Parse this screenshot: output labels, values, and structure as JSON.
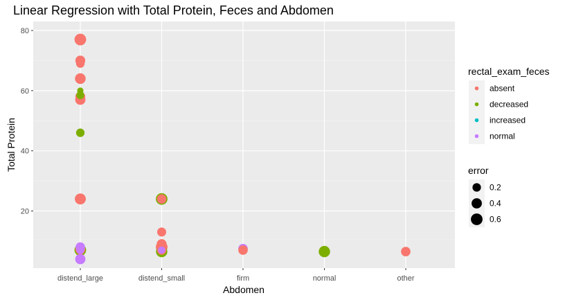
{
  "chart_data": {
    "type": "scatter",
    "title": "Linear Regression with Total Protein, Feces and Abdomen",
    "xlabel": "Abdomen",
    "ylabel": "Total Protein",
    "categories": [
      "distend_large",
      "distend_small",
      "firm",
      "normal",
      "other"
    ],
    "ylim": [
      1,
      83
    ],
    "yticks": [
      20,
      40,
      60,
      80
    ],
    "grid": true,
    "legend_position": "right",
    "color_legend": {
      "title": "rectal_exam_feces",
      "entries": [
        {
          "label": "absent",
          "color": "#F8766D"
        },
        {
          "label": "decreased",
          "color": "#7CAE00"
        },
        {
          "label": "increased",
          "color": "#00BFC4"
        },
        {
          "label": "normal",
          "color": "#C77CFF"
        }
      ]
    },
    "size_legend": {
      "title": "error",
      "entries": [
        {
          "label": "0.2",
          "value": 0.2
        },
        {
          "label": "0.4",
          "value": 0.4
        },
        {
          "label": "0.6",
          "value": 0.6
        }
      ]
    },
    "points": [
      {
        "x": "distend_large",
        "y": 77,
        "group": "absent",
        "error": 0.6
      },
      {
        "x": "distend_large",
        "y": 70,
        "group": "absent",
        "error": 0.35
      },
      {
        "x": "distend_large",
        "y": 69,
        "group": "absent",
        "error": 0.2
      },
      {
        "x": "distend_large",
        "y": 64,
        "group": "absent",
        "error": 0.45
      },
      {
        "x": "distend_large",
        "y": 60,
        "group": "decreased",
        "error": 0.05
      },
      {
        "x": "distend_large",
        "y": 58,
        "group": "absent",
        "error": 0.35
      },
      {
        "x": "distend_large",
        "y": 58.5,
        "group": "decreased",
        "error": 0.15
      },
      {
        "x": "distend_large",
        "y": 57,
        "group": "absent",
        "error": 0.4
      },
      {
        "x": "distend_large",
        "y": 46,
        "group": "decreased",
        "error": 0.2
      },
      {
        "x": "distend_large",
        "y": 24,
        "group": "absent",
        "error": 0.5
      },
      {
        "x": "distend_large",
        "y": 8,
        "group": "normal",
        "error": 0.3
      },
      {
        "x": "distend_large",
        "y": 7,
        "group": "decreased",
        "error": 0.6
      },
      {
        "x": "distend_large",
        "y": 7.2,
        "group": "absent",
        "error": 0.35
      },
      {
        "x": "distend_large",
        "y": 7,
        "group": "normal",
        "error": 0.15
      },
      {
        "x": "distend_large",
        "y": 4,
        "group": "normal",
        "error": 0.4
      },
      {
        "x": "distend_small",
        "y": 24,
        "group": "decreased",
        "error": 0.6
      },
      {
        "x": "distend_small",
        "y": 24,
        "group": "absent",
        "error": 0.3
      },
      {
        "x": "distend_small",
        "y": 13,
        "group": "absent",
        "error": 0.25
      },
      {
        "x": "distend_small",
        "y": 9,
        "group": "absent",
        "error": 0.35
      },
      {
        "x": "distend_small",
        "y": 8,
        "group": "absent",
        "error": 0.6
      },
      {
        "x": "distend_small",
        "y": 7,
        "group": "normal",
        "error": 0.1
      },
      {
        "x": "distend_small",
        "y": 6.5,
        "group": "decreased",
        "error": 0.55
      },
      {
        "x": "distend_small",
        "y": 7,
        "group": "absent",
        "error": 0.3
      },
      {
        "x": "firm",
        "y": 7.5,
        "group": "normal",
        "error": 0.3
      },
      {
        "x": "firm",
        "y": 7,
        "group": "absent",
        "error": 0.3
      },
      {
        "x": "normal",
        "y": 6.5,
        "group": "decreased",
        "error": 0.55
      },
      {
        "x": "other",
        "y": 6.5,
        "group": "absent",
        "error": 0.3
      }
    ]
  }
}
